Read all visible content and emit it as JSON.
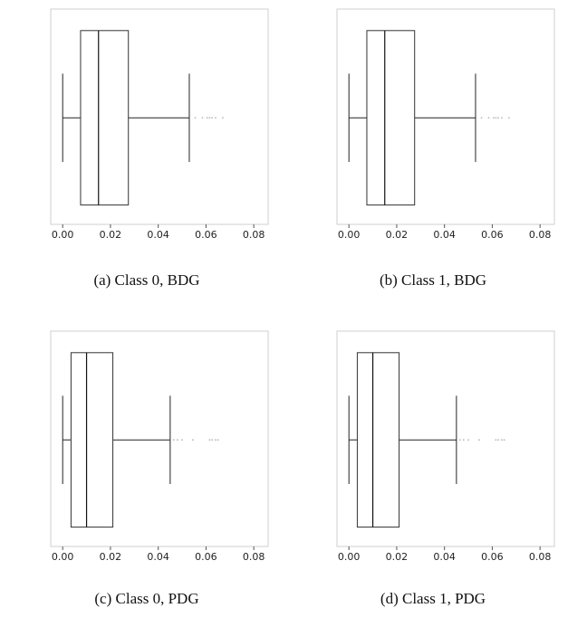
{
  "chart_data": [
    {
      "type": "box",
      "caption": "(a) Class 0, BDG",
      "xlim": [
        -0.005,
        0.086
      ],
      "xticks": [
        "0.00",
        "0.02",
        "0.04",
        "0.06",
        "0.08"
      ],
      "xtick_values": [
        0.0,
        0.02,
        0.04,
        0.06,
        0.08
      ],
      "box": {
        "whisker_low": 0.0,
        "q1": 0.0075,
        "median": 0.015,
        "q3": 0.0275,
        "whisker_high": 0.053
      },
      "outliers": [
        0.0555,
        0.0585,
        0.0605,
        0.0615,
        0.0625,
        0.064,
        0.067
      ],
      "grid": false
    },
    {
      "type": "box",
      "caption": "(b) Class 1, BDG",
      "xlim": [
        -0.005,
        0.086
      ],
      "xticks": [
        "0.00",
        "0.02",
        "0.04",
        "0.06",
        "0.08"
      ],
      "xtick_values": [
        0.0,
        0.02,
        0.04,
        0.06,
        0.08
      ],
      "box": {
        "whisker_low": 0.0,
        "q1": 0.0075,
        "median": 0.015,
        "q3": 0.0275,
        "whisker_high": 0.053
      },
      "outliers": [
        0.0555,
        0.0585,
        0.0605,
        0.0615,
        0.0625,
        0.064,
        0.067
      ],
      "grid": false
    },
    {
      "type": "box",
      "caption": "(c) Class 0, PDG",
      "xlim": [
        -0.005,
        0.086
      ],
      "xticks": [
        "0.00",
        "0.02",
        "0.04",
        "0.06",
        "0.08"
      ],
      "xtick_values": [
        0.0,
        0.02,
        0.04,
        0.06,
        0.08
      ],
      "box": {
        "whisker_low": 0.0,
        "q1": 0.0035,
        "median": 0.01,
        "q3": 0.021,
        "whisker_high": 0.045
      },
      "outliers": [
        0.0465,
        0.048,
        0.05,
        0.0545,
        0.0615,
        0.0625,
        0.064,
        0.065
      ],
      "grid": false
    },
    {
      "type": "box",
      "caption": "(d) Class 1, PDG",
      "xlim": [
        -0.005,
        0.086
      ],
      "xticks": [
        "0.00",
        "0.02",
        "0.04",
        "0.06",
        "0.08"
      ],
      "xtick_values": [
        0.0,
        0.02,
        0.04,
        0.06,
        0.08
      ],
      "box": {
        "whisker_low": 0.0,
        "q1": 0.0035,
        "median": 0.01,
        "q3": 0.021,
        "whisker_high": 0.045
      },
      "outliers": [
        0.0465,
        0.048,
        0.05,
        0.0545,
        0.0615,
        0.0625,
        0.064,
        0.065
      ],
      "grid": false
    }
  ]
}
